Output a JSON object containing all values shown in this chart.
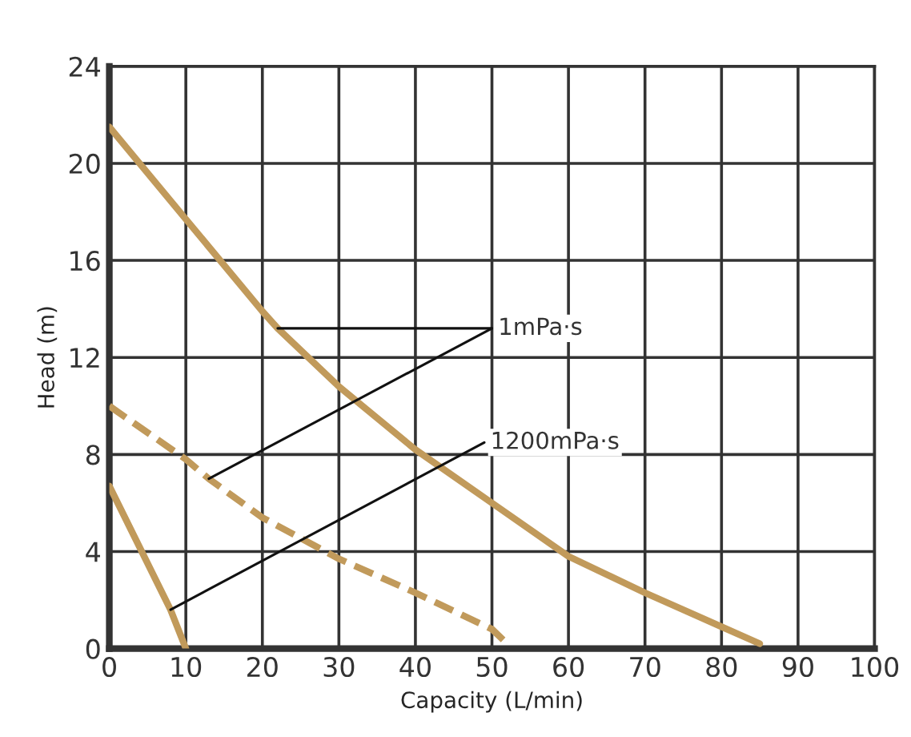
{
  "chart_data": {
    "type": "line",
    "xlabel": "Capacity (L/min)",
    "ylabel": "Head (m)",
    "xlim": [
      0,
      100
    ],
    "xticks": [
      0,
      10,
      20,
      30,
      40,
      50,
      60,
      70,
      80,
      90,
      100
    ],
    "ylim": [
      0,
      24
    ],
    "yticks": [
      0,
      4,
      8,
      12,
      16,
      20,
      24
    ],
    "grid": true,
    "series": [
      {
        "color": "#c19a5b",
        "line_style": "solid",
        "x": [
          0,
          10,
          20,
          22,
          30,
          40,
          50,
          60,
          70,
          80,
          85
        ],
        "values": [
          21.5,
          17.7,
          13.9,
          13.2,
          10.8,
          8.2,
          6.0,
          3.8,
          2.3,
          0.9,
          0.2
        ]
      },
      {
        "color": "#c19a5b",
        "line_style": "dashed",
        "x": [
          0,
          10,
          13,
          20,
          30,
          40,
          50,
          52
        ],
        "values": [
          10,
          7.8,
          7.0,
          5.4,
          3.7,
          2.3,
          0.8,
          0.2
        ]
      },
      {
        "color": "#c19a5b",
        "line_style": "solid",
        "x": [
          0,
          8,
          10
        ],
        "values": [
          6.7,
          1.6,
          0
        ]
      }
    ],
    "annotations": [
      {
        "text": "1mPa·s",
        "x": 22,
        "y": 13.2
      },
      {
        "text": "1200mPa·s",
        "x": 8,
        "y": 1.6
      }
    ]
  }
}
